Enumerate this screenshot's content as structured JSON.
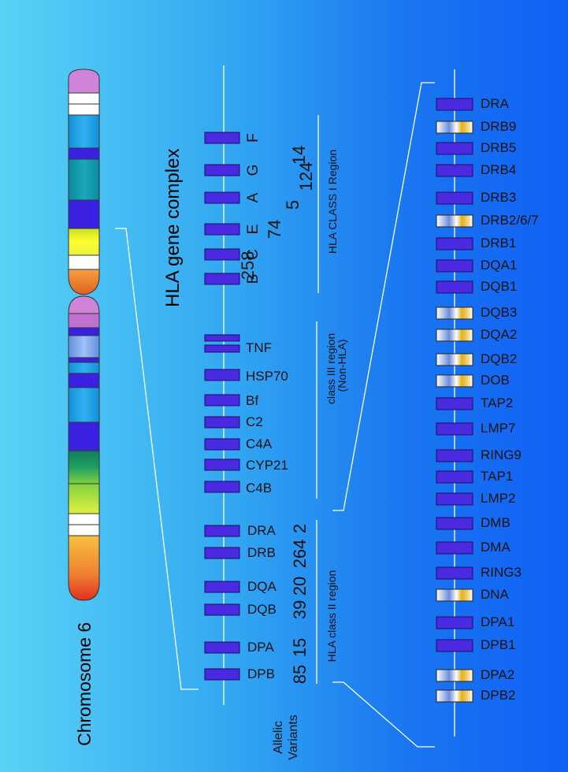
{
  "title": "HLA gene complex",
  "chromosome_label": "Chromosome 6",
  "allelic_label_1": "Allelic",
  "allelic_label_2": "Variants",
  "class1": {
    "genes": [
      "B",
      "C",
      "E",
      "A",
      "G",
      "F"
    ],
    "counts": [
      "258",
      "74",
      "5",
      "124",
      "14"
    ],
    "region_label": "HLA CLASS I Region"
  },
  "class3": {
    "genes": [
      "TNF",
      "HSP70",
      "Bf",
      "C2",
      "C4A",
      "CYP21",
      "C4B"
    ],
    "region_label_1": "class  III region",
    "region_label_2": "(Non-HLA)"
  },
  "class2": {
    "genes": [
      "DRA",
      "DRB",
      "DQA",
      "DQB",
      "DPA",
      "DPB"
    ],
    "counts": [
      "2",
      "264",
      "20",
      "39",
      "15",
      "85"
    ],
    "region_label": "HLA class  II region"
  },
  "detail_genes": [
    "DRA",
    "DRB9",
    "DRB5",
    "DRB4",
    "DRB3",
    "DRB2/6/7",
    "DRB1",
    "DQA1",
    "DQB1",
    "DQB3",
    "DQA2",
    "DQB2",
    "DOB",
    "TAP2",
    "LMP7",
    "RING9",
    "TAP1",
    "LMP2",
    "DMB",
    "DMA",
    "RING3",
    "DNA",
    "DPA1",
    "DPB1",
    "DPA2",
    "DPB2"
  ],
  "colors": {
    "gene_box": "#4a2ae0",
    "pseudogene_stripe": "#e0b020",
    "line": "#ffffff"
  }
}
